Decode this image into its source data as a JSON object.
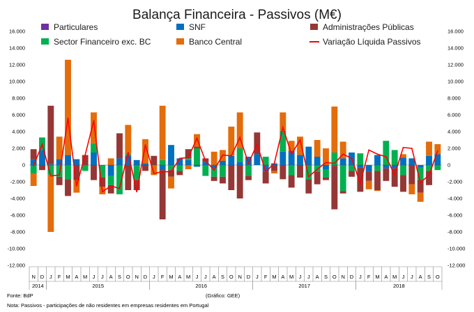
{
  "chart_data": {
    "type": "bar",
    "stacked": true,
    "title": "Balança Financeira - Passivos (M€)",
    "ylim": [
      -12000,
      16000
    ],
    "yticks_left": [
      "16.000",
      "14.000",
      "12.000",
      "10.000",
      "8.000",
      "6.000",
      "4.000",
      "2.000",
      "0",
      "-2.000",
      "-4.000",
      "-6.000",
      "-8.000",
      "-10.000",
      "-12.000"
    ],
    "yticks_right": [
      "16.000",
      "14.000",
      "12.000",
      "10.000",
      "8.000",
      "6.000",
      "4.000",
      "2.000",
      "0",
      "-2.000",
      "-4.000",
      "-6.000",
      "-8.000",
      "-10.000",
      "-12.000"
    ],
    "ytick_values": [
      16000,
      14000,
      12000,
      10000,
      8000,
      6000,
      4000,
      2000,
      0,
      -2000,
      -4000,
      -6000,
      -8000,
      -10000,
      -12000
    ],
    "months": [
      "N",
      "D",
      "J",
      "F",
      "M",
      "A",
      "M",
      "J",
      "J",
      "A",
      "S",
      "O",
      "N",
      "D",
      "J",
      "F",
      "M",
      "A",
      "M",
      "J",
      "J",
      "A",
      "S",
      "O",
      "N",
      "D",
      "J",
      "F",
      "M",
      "A",
      "M",
      "J",
      "J",
      "A",
      "S",
      "O",
      "N",
      "D",
      "J",
      "F",
      "M",
      "A",
      "M",
      "J",
      "J",
      "A",
      "S",
      "O"
    ],
    "years": [
      {
        "label": "2014",
        "start": 0,
        "end": 1
      },
      {
        "label": "2015",
        "start": 2,
        "end": 13
      },
      {
        "label": "2016",
        "start": 14,
        "end": 25
      },
      {
        "label": "2017",
        "start": 26,
        "end": 37
      },
      {
        "label": "2018",
        "start": 38,
        "end": 47
      }
    ],
    "series": [
      {
        "name": "Particulares",
        "color": "#7030a0",
        "line": false,
        "values": [
          0,
          0,
          0,
          0,
          0,
          0,
          0,
          0,
          0,
          0,
          0,
          0,
          0,
          0,
          0,
          0,
          0,
          0,
          0,
          0,
          0,
          0,
          0,
          0,
          0,
          0,
          0,
          0,
          0,
          0,
          0,
          0,
          0,
          0,
          0,
          0,
          0,
          0,
          0,
          0,
          0,
          0,
          0,
          0,
          0,
          0,
          0,
          0
        ]
      },
      {
        "name": "SNF",
        "color": "#0070c0",
        "line": false,
        "values": [
          700,
          1800,
          100,
          700,
          1200,
          700,
          0,
          1500,
          -100,
          -1300,
          800,
          1100,
          600,
          200,
          0,
          -600,
          2400,
          800,
          600,
          -200,
          400,
          -400,
          500,
          1100,
          400,
          1000,
          1300,
          -800,
          200,
          1600,
          1700,
          1200,
          2200,
          1000,
          -500,
          -100,
          800,
          1500,
          -300,
          -800,
          1200,
          -400,
          -400,
          900,
          800,
          -300,
          1100,
          1300
        ]
      },
      {
        "name": "Sector Financeiro exc. BC",
        "color": "#00b050",
        "line": false,
        "values": [
          -1000,
          1500,
          -1200,
          -1400,
          -1700,
          0,
          -700,
          1100,
          -1400,
          -1100,
          -3500,
          200,
          -1800,
          0,
          0,
          600,
          -600,
          -700,
          200,
          2000,
          -1300,
          -1000,
          -1400,
          0,
          1600,
          -1300,
          0,
          1000,
          0,
          2500,
          -1200,
          0,
          -1700,
          -800,
          -1000,
          1500,
          -3100,
          -700,
          1400,
          0,
          -700,
          2900,
          1800,
          -1200,
          0,
          -1500,
          -700,
          -600
        ]
      },
      {
        "name": "Administrações Públicas",
        "color": "#953735",
        "line": false,
        "values": [
          1200,
          -600,
          7000,
          -1000,
          -2000,
          -1800,
          1200,
          -1800,
          -1100,
          -1000,
          3000,
          -3000,
          -1200,
          -700,
          1100,
          -5900,
          -800,
          -500,
          1100,
          200,
          400,
          -500,
          -800,
          -3000,
          -4000,
          -500,
          2600,
          -1400,
          -700,
          -1700,
          -1500,
          -1500,
          -1700,
          -1500,
          -300,
          -5200,
          -300,
          -700,
          -2900,
          -1100,
          -2300,
          -1500,
          -2200,
          -2000,
          -2300,
          -1500,
          -1700,
          0
        ]
      },
      {
        "name": "Banco Central",
        "color": "#e46c0a",
        "line": false,
        "values": [
          -1500,
          0,
          -6800,
          2700,
          11400,
          -1500,
          0,
          3700,
          -900,
          800,
          0,
          3500,
          0,
          2900,
          -1200,
          6500,
          -1400,
          0,
          -500,
          1500,
          0,
          1600,
          1300,
          3500,
          4300,
          0,
          0,
          0,
          -300,
          2200,
          1200,
          2200,
          0,
          2000,
          2000,
          5500,
          2000,
          0,
          0,
          -1000,
          -100,
          0,
          0,
          400,
          -1200,
          -1100,
          1700,
          1200
        ]
      },
      {
        "name": "Variação Líquida Passivos",
        "color": "#ff0000",
        "line": true,
        "values": [
          -100,
          2500,
          -1300,
          -1200,
          5600,
          -2500,
          1200,
          5300,
          -3200,
          -2500,
          -2800,
          1500,
          -3200,
          2400,
          -1000,
          -800,
          -800,
          800,
          900,
          3200,
          500,
          -600,
          1200,
          1100,
          3300,
          200,
          2500,
          -800,
          200,
          4500,
          1300,
          3000,
          -1400,
          -500,
          300,
          200,
          1300,
          800,
          -2200,
          1800,
          1300,
          1000,
          -1200,
          2100,
          2000,
          -2100,
          -1200,
          1700
        ]
      }
    ],
    "legend": [
      {
        "name": "Particulares",
        "color": "#7030a0",
        "kind": "box"
      },
      {
        "name": "SNF",
        "color": "#0070c0",
        "kind": "box"
      },
      {
        "name": "Administrações Públicas",
        "color": "#953735",
        "kind": "box"
      },
      {
        "name": "Sector Financeiro exc. BC",
        "color": "#00b050",
        "kind": "box"
      },
      {
        "name": "Banco Central",
        "color": "#e46c0a",
        "kind": "box"
      },
      {
        "name": "Variação Líquida Passivos",
        "color": "#ff0000",
        "kind": "line"
      }
    ],
    "legend_position": "top",
    "grid": false
  },
  "footer": {
    "source": "Fonte: BdP",
    "credit": "(Gráfico: GEE)",
    "note": "Nota: Passivos - participações de não residentes em empresas residentes em Portugal"
  }
}
